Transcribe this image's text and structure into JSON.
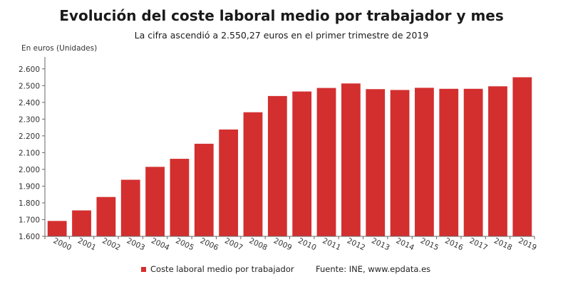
{
  "header": {
    "title": "Evolución del coste laboral medio por trabajador y mes",
    "subtitle": "La cifra ascendió a 2.550,27 euros en el primer trimestre de 2019",
    "unit_label": "En euros (Unidades)"
  },
  "legend": {
    "series_label": "Coste laboral medio por trabajador",
    "source": "Fuente: INE, www.epdata.es"
  },
  "colors": {
    "bar": "#d32f2f",
    "axis": "#666666",
    "grid": "#eeeeee"
  },
  "chart_data": {
    "type": "bar",
    "title": "Evolución del coste laboral medio por trabajador y mes",
    "subtitle": "La cifra ascendió a 2.550,27 euros en el primer trimestre de 2019",
    "ylabel": "En euros (Unidades)",
    "ylim": [
      1600,
      2650
    ],
    "yticks": [
      1600,
      1700,
      1800,
      1900,
      2000,
      2100,
      2200,
      2300,
      2400,
      2500,
      2600
    ],
    "ytick_labels": [
      "1.600",
      "1.700",
      "1.800",
      "1.900",
      "2.000",
      "2.100",
      "2.200",
      "2.300",
      "2.400",
      "2.500",
      "2.600"
    ],
    "categories": [
      "2000",
      "2001",
      "2002",
      "2003",
      "2004",
      "2005",
      "2006",
      "2007",
      "2008",
      "2009",
      "2010",
      "2011",
      "2012",
      "2013",
      "2014",
      "2015",
      "2016",
      "2017",
      "2018",
      "2019"
    ],
    "series": [
      {
        "name": "Coste laboral medio por trabajador",
        "values": [
          1692,
          1755,
          1835,
          1938,
          2015,
          2063,
          2153,
          2238,
          2341,
          2438,
          2465,
          2486,
          2513,
          2479,
          2474,
          2487,
          2481,
          2481,
          2496,
          2550
        ]
      }
    ],
    "legend_position": "bottom",
    "grid": false
  }
}
